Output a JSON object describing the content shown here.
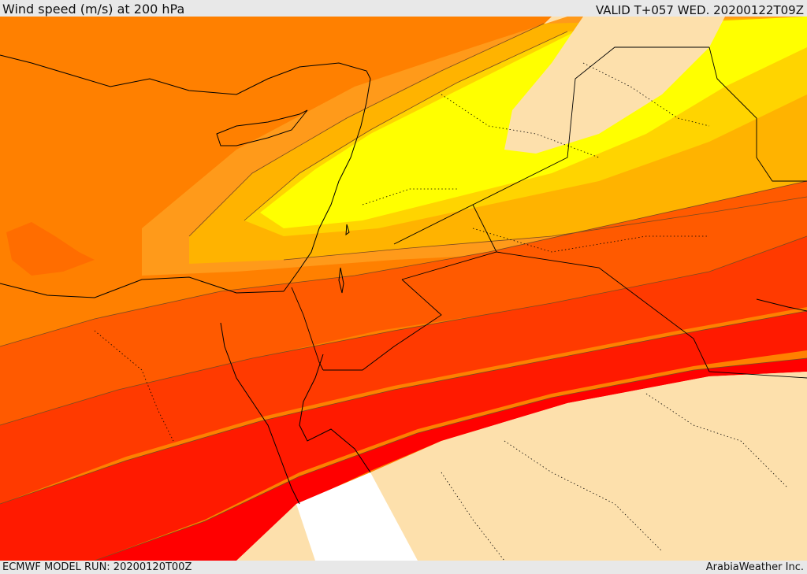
{
  "header": {
    "title": "Wind speed (m/s) at 200 hPa",
    "valid_time": "VALID T+057 WED. 20200122T09Z"
  },
  "footer": {
    "model_run": "ECMWF MODEL RUN: 20200120T00Z",
    "credit": "ArabiaWeather Inc."
  },
  "map": {
    "variable": "Wind speed",
    "units": "m/s",
    "level_hpa": 200,
    "fill_palette": {
      "land_background": "#fde0ac",
      "no_data": "#ffffff",
      "band_orange": "#ff8000",
      "band_orange_light": "#ff9a1a",
      "band_amber": "#ffb300",
      "band_gold": "#ffd400",
      "band_yellow": "#ffff00",
      "band_red_orange": "#ff5a00",
      "band_red_orange_2": "#ff3a00",
      "band_red": "#ff1a00",
      "band_deep_red": "#ff0000",
      "contour_line": "#7a5a20",
      "coastline": "#000000",
      "border": "#000000"
    }
  }
}
